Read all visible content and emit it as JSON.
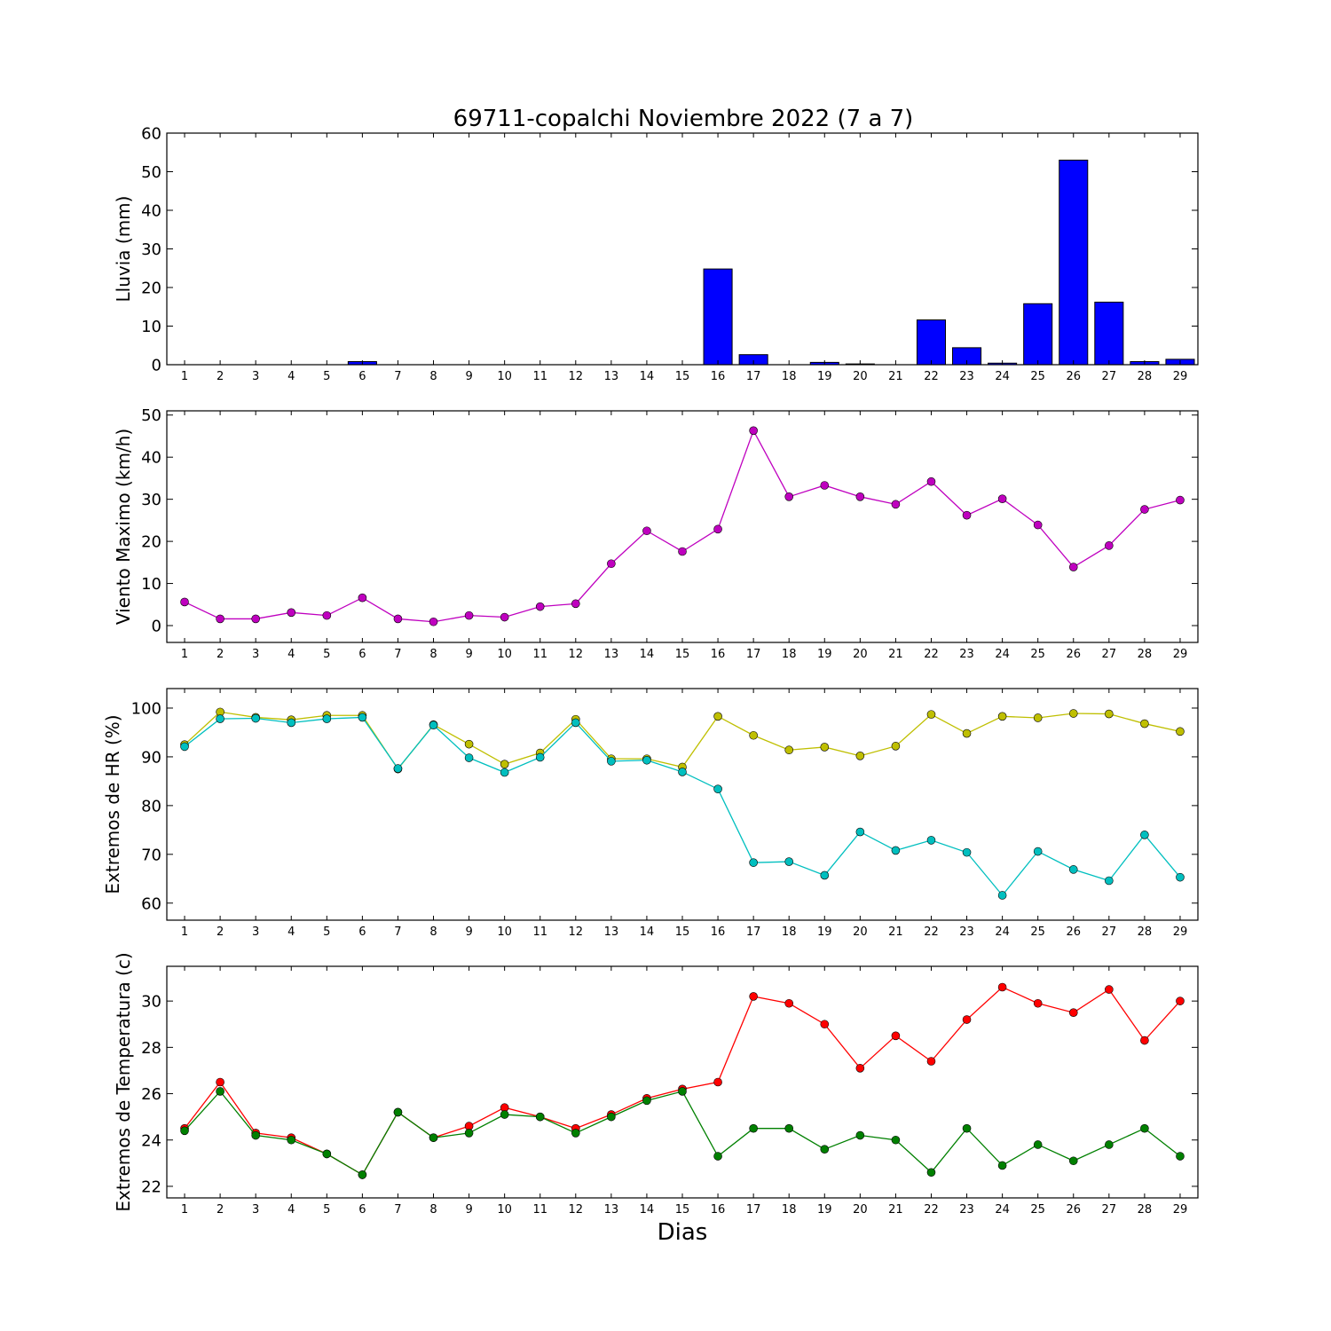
{
  "chart_data": {
    "title": "69711-copalchi Noviembre 2022  (7 a 7)",
    "xlabel": "Dias",
    "days": [
      1,
      2,
      3,
      4,
      5,
      6,
      7,
      8,
      9,
      10,
      11,
      12,
      13,
      14,
      15,
      16,
      17,
      18,
      19,
      20,
      21,
      22,
      23,
      24,
      25,
      26,
      27,
      28,
      29
    ],
    "panels": [
      {
        "type": "bar",
        "ylabel": "Lluvia (mm)",
        "ylim": [
          0,
          60
        ],
        "yticks": [
          0,
          10,
          20,
          30,
          40,
          50,
          60
        ],
        "series": [
          {
            "color": "#0000ff",
            "values": [
              0,
              0,
              0,
              0,
              0,
              0.8,
              0,
              0,
              0,
              0,
              0,
              0,
              0,
              0,
              0,
              24.8,
              2.6,
              0,
              0.6,
              0.2,
              0,
              11.6,
              4.4,
              0.4,
              15.8,
              53,
              16.2,
              0.8,
              1.4
            ]
          }
        ]
      },
      {
        "type": "line",
        "ylabel": "Viento Maximo (km/h)",
        "ylim": [
          -4,
          51
        ],
        "yticks": [
          0,
          10,
          20,
          30,
          40,
          50
        ],
        "series": [
          {
            "color": "#bf00bf",
            "values": [
              5.6,
              1.6,
              1.6,
              3.1,
              2.4,
              6.6,
              1.6,
              0.9,
              2.4,
              2.0,
              4.5,
              5.2,
              14.7,
              22.5,
              17.6,
              22.9,
              46.3,
              30.6,
              33.3,
              30.6,
              28.8,
              34.2,
              26.2,
              30.1,
              23.9,
              13.9,
              19.0,
              27.6,
              29.8
            ]
          }
        ]
      },
      {
        "type": "line",
        "ylabel": "Extremos de HR (%)",
        "ylim": [
          56.5,
          104
        ],
        "yticks": [
          60,
          70,
          80,
          90,
          100
        ],
        "series": [
          {
            "color": "#bfbf00",
            "values": [
              92.5,
              99.2,
              98.1,
              97.6,
              98.5,
              98.5,
              87.5,
              96.6,
              92.6,
              88.5,
              90.8,
              97.7,
              89.6,
              89.6,
              87.9,
              98.3,
              94.4,
              91.4,
              92.0,
              90.2,
              92.2,
              98.7,
              94.8,
              98.3,
              98.0,
              98.9,
              98.8,
              96.8,
              95.2
            ]
          },
          {
            "color": "#00bfbf",
            "values": [
              92.1,
              97.8,
              97.9,
              97.0,
              97.8,
              98.1,
              87.6,
              96.5,
              89.8,
              86.8,
              89.9,
              97.0,
              89.1,
              89.3,
              86.9,
              83.4,
              68.3,
              68.5,
              65.7,
              74.6,
              70.8,
              72.9,
              70.4,
              61.6,
              70.6,
              66.9,
              64.6,
              74.0,
              65.3
            ]
          }
        ]
      },
      {
        "type": "line",
        "ylabel": "Extremos de Temperatura (c)",
        "ylim": [
          21.5,
          31.5
        ],
        "yticks": [
          22,
          24,
          26,
          28,
          30
        ],
        "series": [
          {
            "color": "#ff0000",
            "values": [
              24.5,
              26.5,
              24.3,
              24.1,
              23.4,
              22.5,
              25.2,
              24.1,
              24.6,
              25.4,
              25.0,
              24.5,
              25.1,
              25.8,
              26.2,
              26.5,
              30.2,
              29.9,
              29.0,
              27.1,
              28.5,
              27.4,
              29.2,
              30.6,
              29.9,
              29.5,
              30.5,
              28.3,
              30.0
            ]
          },
          {
            "color": "#008000",
            "values": [
              24.4,
              26.1,
              24.2,
              24.0,
              23.4,
              22.5,
              25.2,
              24.1,
              24.3,
              25.1,
              25.0,
              24.3,
              25.0,
              25.7,
              26.1,
              23.3,
              24.5,
              24.5,
              23.6,
              24.2,
              24.0,
              22.6,
              24.5,
              22.9,
              23.8,
              23.1,
              23.8,
              24.5,
              23.3
            ]
          }
        ]
      }
    ]
  }
}
